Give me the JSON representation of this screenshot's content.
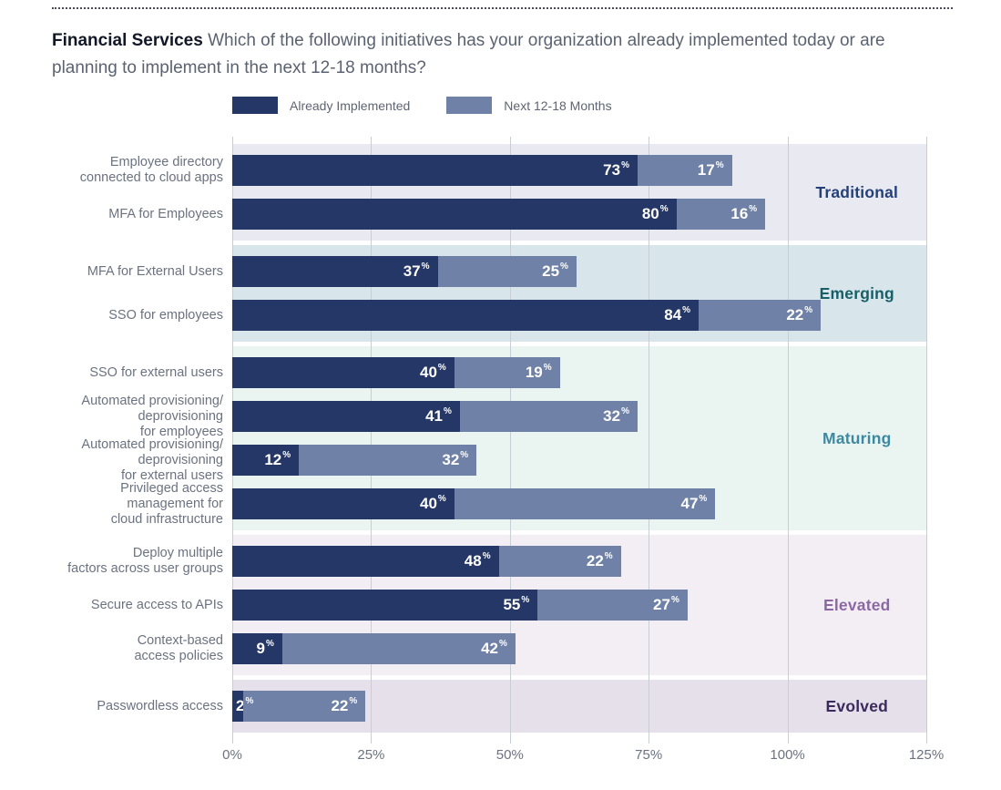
{
  "page": {
    "title_bold": "Financial Services",
    "title_rest": "Which of the following initiatives has your organization already implemented today or are planning to implement in the next 12-18 months?"
  },
  "legend": {
    "items": [
      {
        "label": "Already Implemented",
        "color": "#243766"
      },
      {
        "label": "Next 12-18 Months",
        "color": "#6f81a6"
      }
    ]
  },
  "chart_data": {
    "type": "bar",
    "orientation": "horizontal",
    "stacked": true,
    "grid": true,
    "xlim": [
      0,
      125
    ],
    "x_ticks": [
      "0%",
      "25%",
      "50%",
      "75%",
      "100%",
      "125%"
    ],
    "value_suffix": "%",
    "series_names": [
      "Already Implemented",
      "Next 12-18 Months"
    ],
    "series_colors": [
      "#243766",
      "#6f81a6"
    ],
    "grid_color": "#c9cdd4",
    "groups": [
      {
        "name": "Traditional",
        "name_color": "#24407a",
        "band_color": "#e9eaf1",
        "rows": [
          {
            "label": "Employee directory\nconnected to cloud apps",
            "already_implemented": 73,
            "next_12_18_months": 17
          },
          {
            "label": "MFA for Employees",
            "already_implemented": 80,
            "next_12_18_months": 16
          }
        ]
      },
      {
        "name": "Emerging",
        "name_color": "#175f68",
        "band_color": "#d8e6eb",
        "rows": [
          {
            "label": "MFA for External Users",
            "already_implemented": 37,
            "next_12_18_months": 25
          },
          {
            "label": "SSO for employees",
            "already_implemented": 84,
            "next_12_18_months": 22
          }
        ]
      },
      {
        "name": "Maturing",
        "name_color": "#3d89a1",
        "band_color": "#eaf4f1",
        "rows": [
          {
            "label": "SSO for external users",
            "already_implemented": 40,
            "next_12_18_months": 19
          },
          {
            "label": "Automated provisioning/\ndeprovisioning\nfor employees",
            "already_implemented": 41,
            "next_12_18_months": 32
          },
          {
            "label": "Automated provisioning/\ndeprovisioning\nfor external users",
            "already_implemented": 12,
            "next_12_18_months": 32
          },
          {
            "label": "Privileged access\nmanagement for\ncloud infrastructure",
            "already_implemented": 40,
            "next_12_18_months": 47
          }
        ]
      },
      {
        "name": "Elevated",
        "name_color": "#8b68a4",
        "band_color": "#f3eef4",
        "rows": [
          {
            "label": "Deploy multiple\nfactors across user groups",
            "already_implemented": 48,
            "next_12_18_months": 22
          },
          {
            "label": "Secure access to APIs",
            "already_implemented": 55,
            "next_12_18_months": 27
          },
          {
            "label": "Context-based\naccess policies",
            "already_implemented": 9,
            "next_12_18_months": 42
          }
        ]
      },
      {
        "name": "Evolved",
        "name_color": "#3a2a5e",
        "band_color": "#e5e0ea",
        "rows": [
          {
            "label": "Passwordless access",
            "already_implemented": 2,
            "next_12_18_months": 22
          }
        ]
      }
    ]
  }
}
